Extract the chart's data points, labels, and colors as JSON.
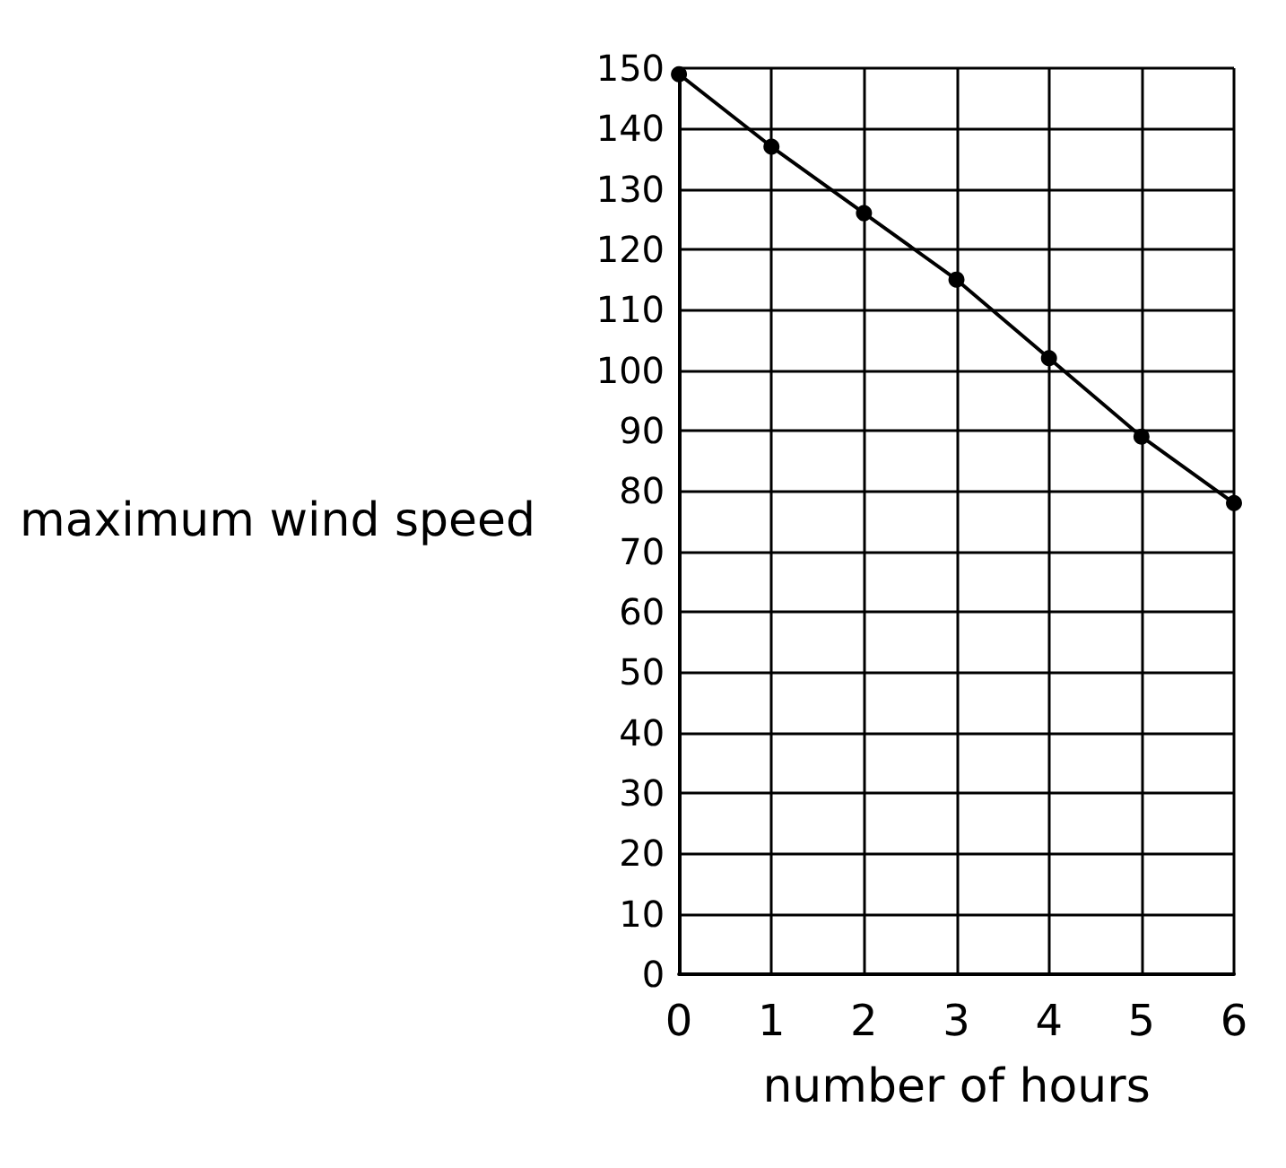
{
  "chart_data": {
    "type": "line",
    "xlabel": "number of hours",
    "ylabel": "maximum wind speed",
    "x": [
      0,
      1,
      2,
      3,
      4,
      5,
      6
    ],
    "series": [
      {
        "color": "#000000",
        "values": [
          149,
          137,
          126,
          115,
          102,
          89,
          78
        ]
      }
    ],
    "xlim": [
      0,
      6
    ],
    "xticks": [
      0,
      1,
      2,
      3,
      4,
      5,
      6
    ],
    "ylim": [
      0,
      150
    ],
    "yticks": [
      0,
      10,
      20,
      30,
      40,
      50,
      60,
      70,
      80,
      90,
      100,
      110,
      120,
      130,
      140,
      150
    ],
    "grid": true,
    "marker": "circle",
    "line_style": "solid"
  }
}
